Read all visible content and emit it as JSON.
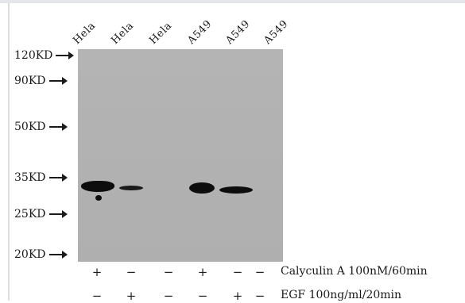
{
  "lanes": [
    "Hela",
    "Hela",
    "Hela",
    "A549",
    "A549",
    "A549"
  ],
  "markers": [
    "120KD",
    "90KD",
    "50KD",
    "35KD",
    "25KD",
    "20KD"
  ],
  "treatments": [
    {
      "label": "Calyculin A 100nM/60min",
      "signs": [
        "+",
        "−",
        "−",
        "+",
        "−",
        "−"
      ]
    },
    {
      "label": "EGF 100ng/ml/20min",
      "signs": [
        "−",
        "+",
        "−",
        "−",
        "+",
        "−"
      ]
    }
  ]
}
